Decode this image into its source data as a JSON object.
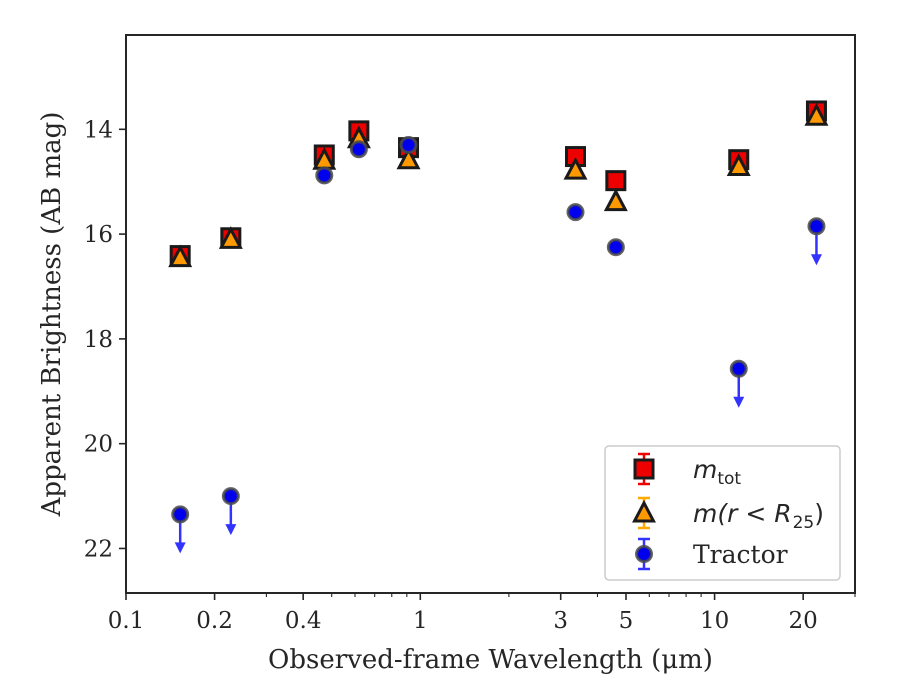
{
  "chart_data": {
    "type": "scatter",
    "xlabel": "Observed-frame Wavelength (μm)",
    "ylabel": "Apparent Brightness (AB mag)",
    "xscale": "log",
    "xlim": [
      0.1,
      30
    ],
    "ylim": [
      22.85,
      12.2
    ],
    "y_inverted": true,
    "x_ticks": [
      {
        "value": 0.1,
        "label": "0.1"
      },
      {
        "value": 0.2,
        "label": "0.2"
      },
      {
        "value": 0.4,
        "label": "0.4"
      },
      {
        "value": 1,
        "label": "1"
      },
      {
        "value": 3,
        "label": "3"
      },
      {
        "value": 5,
        "label": "5"
      },
      {
        "value": 10,
        "label": "10"
      },
      {
        "value": 20,
        "label": "20"
      }
    ],
    "y_ticks": [
      {
        "value": 14,
        "label": "14"
      },
      {
        "value": 16,
        "label": "16"
      },
      {
        "value": 18,
        "label": "18"
      },
      {
        "value": 20,
        "label": "20"
      },
      {
        "value": 22,
        "label": "22"
      }
    ],
    "grid": false,
    "legend_position": "bottom-right",
    "series": [
      {
        "key": "mtot",
        "name": "m_tot",
        "legend_main": "m",
        "legend_sub": "tot",
        "marker": "square",
        "color": "#ee0000",
        "edge": "#1a1a1a",
        "errcolor": "#ee0000",
        "points": [
          {
            "x": 0.1528,
            "y": 16.41
          },
          {
            "x": 0.2271,
            "y": 16.07
          },
          {
            "x": 0.4718,
            "y": 14.49
          },
          {
            "x": 0.6184,
            "y": 14.03
          },
          {
            "x": 0.912,
            "y": 14.35
          },
          {
            "x": 3.368,
            "y": 14.52
          },
          {
            "x": 4.618,
            "y": 14.98
          },
          {
            "x": 12.08,
            "y": 14.58
          },
          {
            "x": 22.19,
            "y": 13.65
          }
        ]
      },
      {
        "key": "m25",
        "name": "m(r < R25)",
        "legend_main": "m(r < R",
        "legend_sub": "25",
        "legend_tail": ")",
        "marker": "triangle",
        "color": "#ff9900",
        "edge": "#1a1a1a",
        "errcolor": "#ffaa00",
        "points": [
          {
            "x": 0.1528,
            "y": 16.45
          },
          {
            "x": 0.2271,
            "y": 16.1
          },
          {
            "x": 0.4718,
            "y": 14.59
          },
          {
            "x": 0.6184,
            "y": 14.18
          },
          {
            "x": 0.912,
            "y": 14.58
          },
          {
            "x": 3.368,
            "y": 14.78
          },
          {
            "x": 4.618,
            "y": 15.38
          },
          {
            "x": 12.08,
            "y": 14.71
          },
          {
            "x": 22.19,
            "y": 13.75
          }
        ]
      },
      {
        "key": "tractor",
        "name": "Tractor",
        "legend_main": "Tractor",
        "marker": "circle",
        "color": "#0000ee",
        "edge": "#4a4a4a",
        "errcolor": "#3333ff",
        "points": [
          {
            "x": 0.1528,
            "y": 21.35,
            "upper_limit": true
          },
          {
            "x": 0.2271,
            "y": 21.0,
            "upper_limit": true
          },
          {
            "x": 0.4718,
            "y": 14.88
          },
          {
            "x": 0.6184,
            "y": 14.38
          },
          {
            "x": 0.912,
            "y": 14.3
          },
          {
            "x": 3.368,
            "y": 15.58
          },
          {
            "x": 4.618,
            "y": 16.25
          },
          {
            "x": 12.08,
            "y": 18.57,
            "upper_limit": true
          },
          {
            "x": 22.19,
            "y": 15.85,
            "upper_limit": true
          }
        ]
      }
    ]
  }
}
